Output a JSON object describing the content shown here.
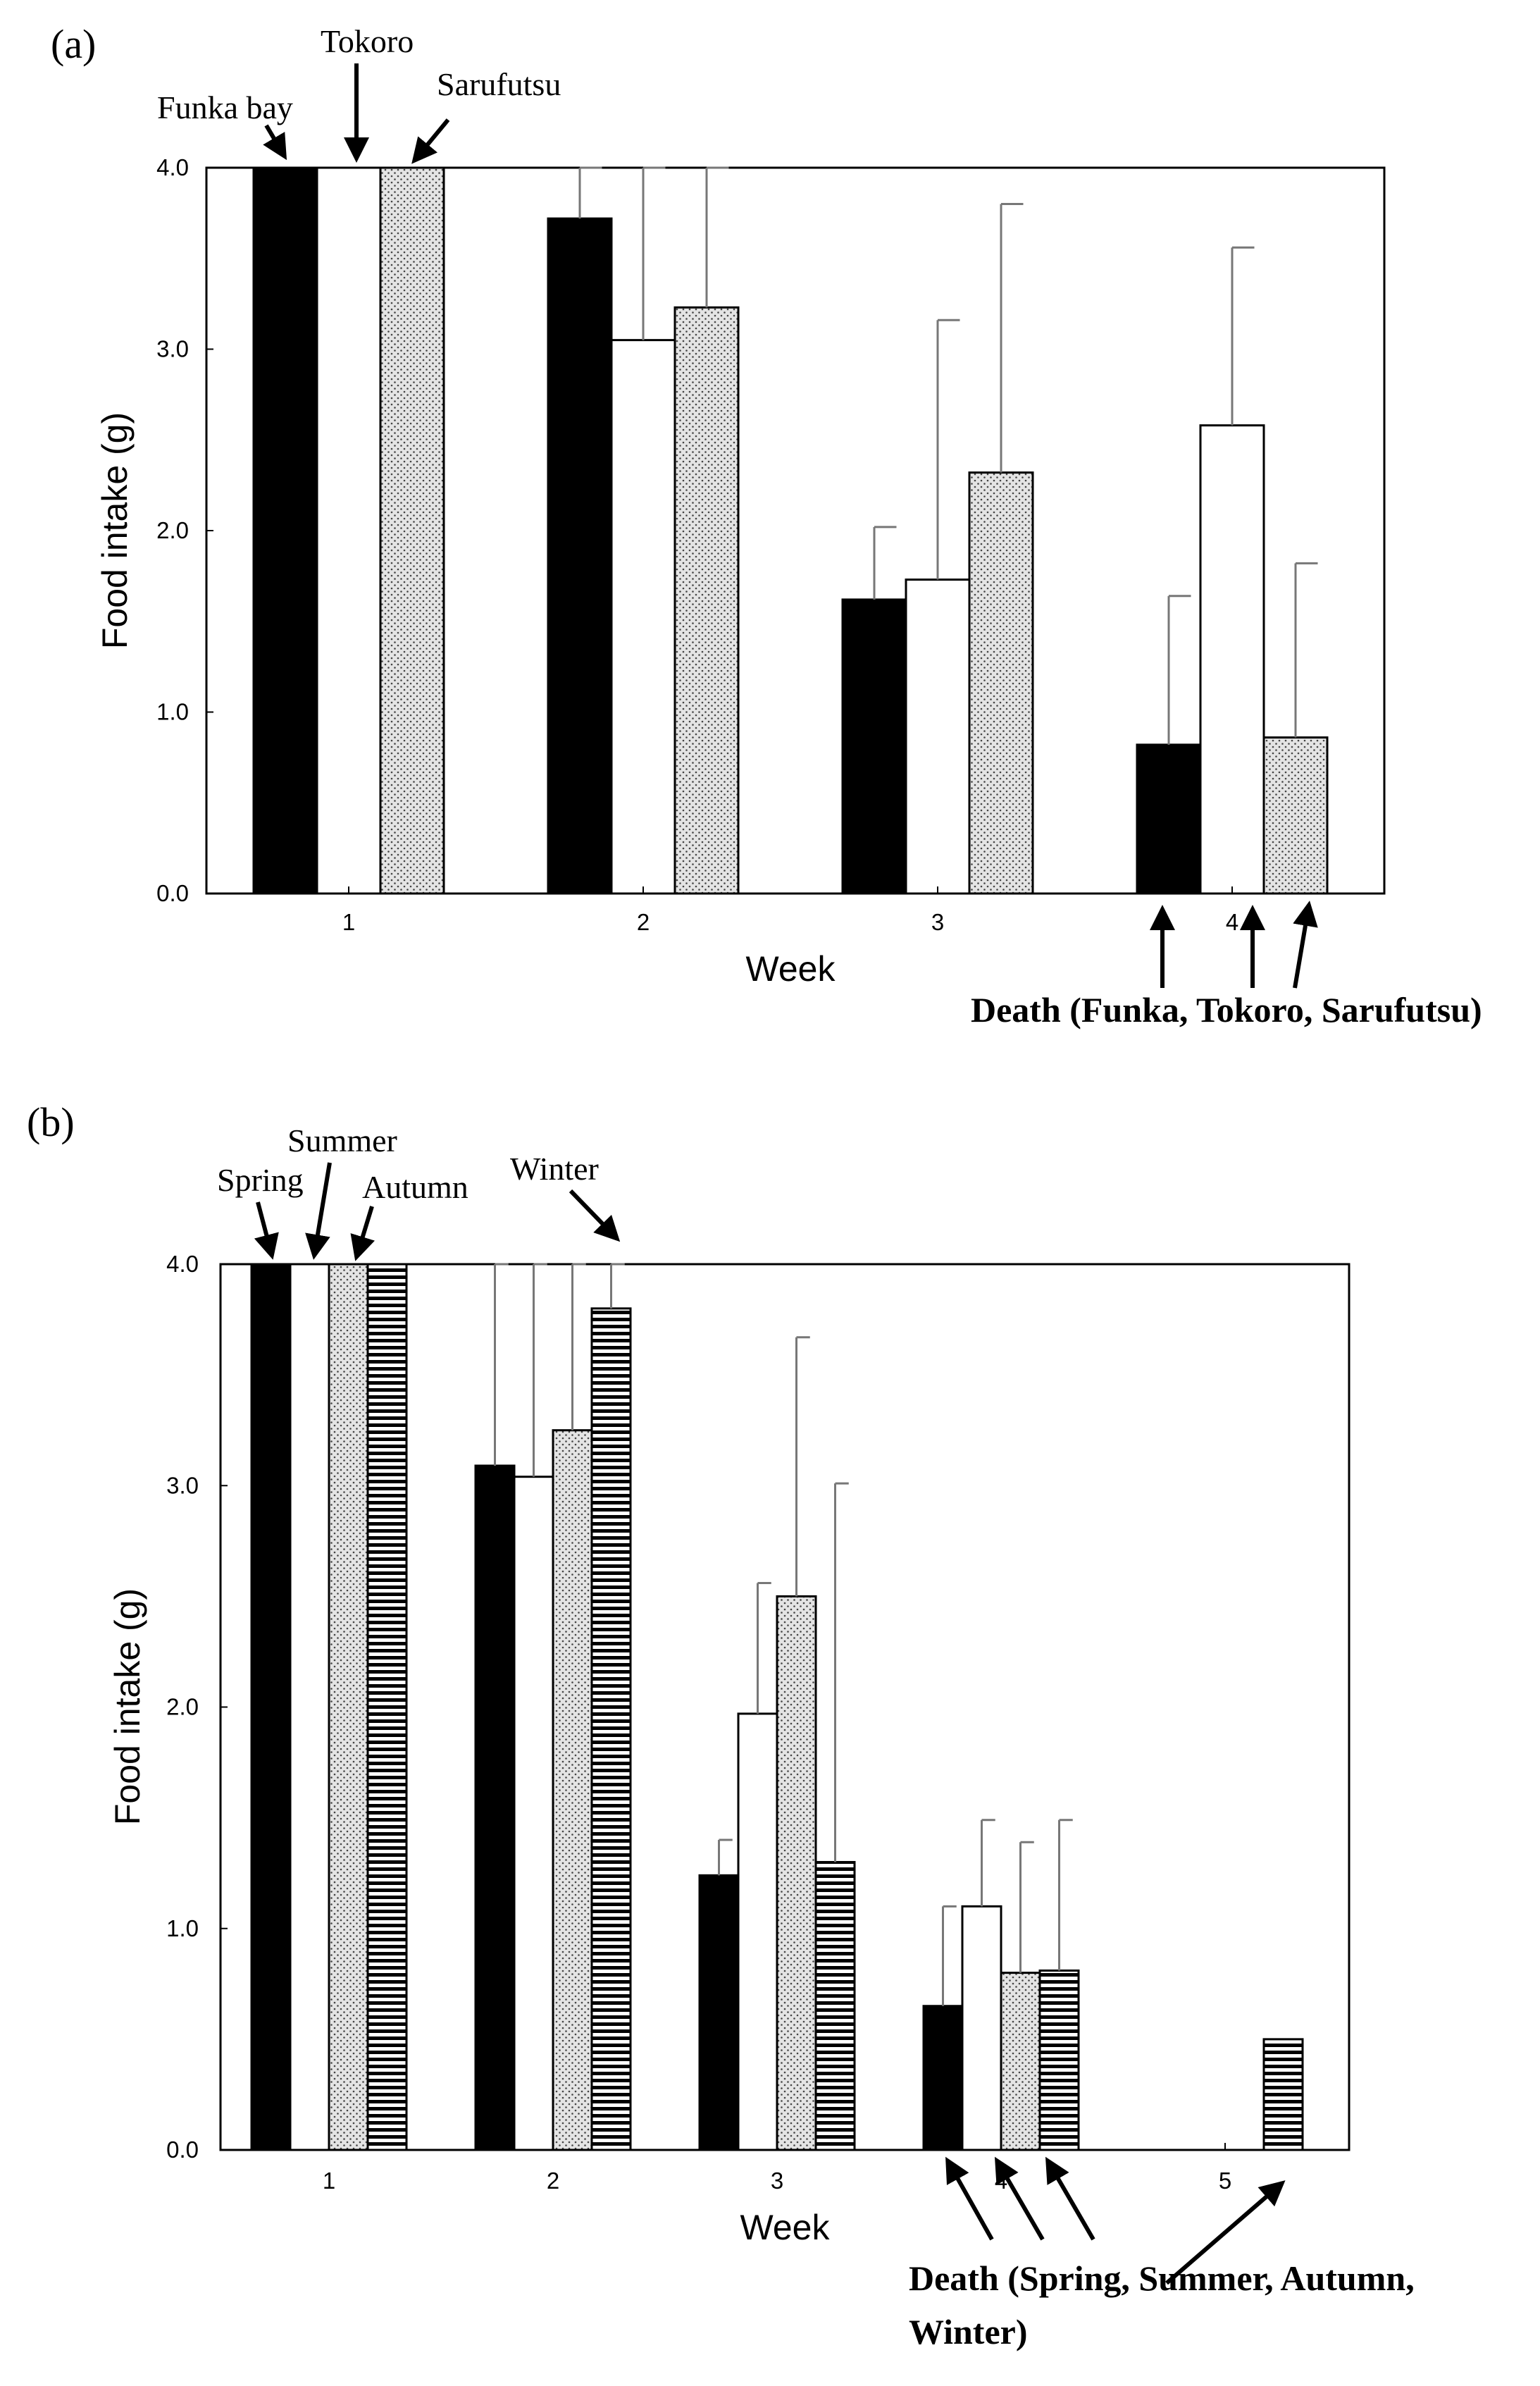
{
  "chart_data": [
    {
      "type": "bar",
      "panel_label": "(a)",
      "xlabel": "Week",
      "ylabel": "Food intake (g)",
      "ylim": [
        0,
        4.0
      ],
      "yticks": [
        "0.0",
        "1.0",
        "2.0",
        "3.0",
        "4.0"
      ],
      "categories": [
        "1",
        "2",
        "3",
        "4"
      ],
      "series": [
        {
          "name": "Funka bay",
          "pattern": "solid-black",
          "values": [
            4.0,
            3.72,
            1.62,
            0.82
          ],
          "errors": [
            0,
            0.4,
            0.4,
            0.82
          ]
        },
        {
          "name": "Tokoro",
          "pattern": "white",
          "values": [
            4.0,
            3.05,
            1.73,
            2.58
          ],
          "errors": [
            0,
            1.0,
            1.43,
            0.98
          ]
        },
        {
          "name": "Sarufutsu",
          "pattern": "dotted",
          "values": [
            4.0,
            3.23,
            2.32,
            0.86
          ],
          "errors": [
            0,
            0.8,
            1.48,
            0.96
          ]
        }
      ],
      "annotations": [
        "Funka bay",
        "Tokoro",
        "Sarufutsu"
      ],
      "death_label": "Death (Funka, Tokoro,  Sarufutsu)"
    },
    {
      "type": "bar",
      "panel_label": "(b)",
      "xlabel": "Week",
      "ylabel": "Food intake (g)",
      "ylim": [
        0,
        4.0
      ],
      "yticks": [
        "0.0",
        "1.0",
        "2.0",
        "3.0",
        "4.0"
      ],
      "categories": [
        "1",
        "2",
        "3",
        "4",
        "5"
      ],
      "series": [
        {
          "name": "Spring",
          "pattern": "solid-black",
          "values": [
            4.0,
            3.09,
            1.24,
            0.65,
            null
          ],
          "errors": [
            0,
            0.91,
            0.16,
            0.45,
            0
          ]
        },
        {
          "name": "Summer",
          "pattern": "white",
          "values": [
            4.0,
            3.04,
            1.97,
            1.1,
            null
          ],
          "errors": [
            0,
            0.96,
            0.59,
            0.39,
            0
          ]
        },
        {
          "name": "Autumn",
          "pattern": "dotted",
          "values": [
            4.0,
            3.25,
            2.5,
            0.8,
            null
          ],
          "errors": [
            0,
            0.75,
            1.17,
            0.59,
            0
          ]
        },
        {
          "name": "Winter",
          "pattern": "horizontal-stripes",
          "values": [
            4.0,
            3.8,
            1.3,
            0.81,
            0.5
          ],
          "errors": [
            0,
            0.2,
            1.71,
            0.68,
            0
          ]
        }
      ],
      "annotations": [
        "Spring",
        "Summer",
        "Autumn",
        "Winter"
      ],
      "death_label_line1": "Death (Spring, Summer, Autumn,",
      "death_label_line2": "Winter)"
    }
  ]
}
